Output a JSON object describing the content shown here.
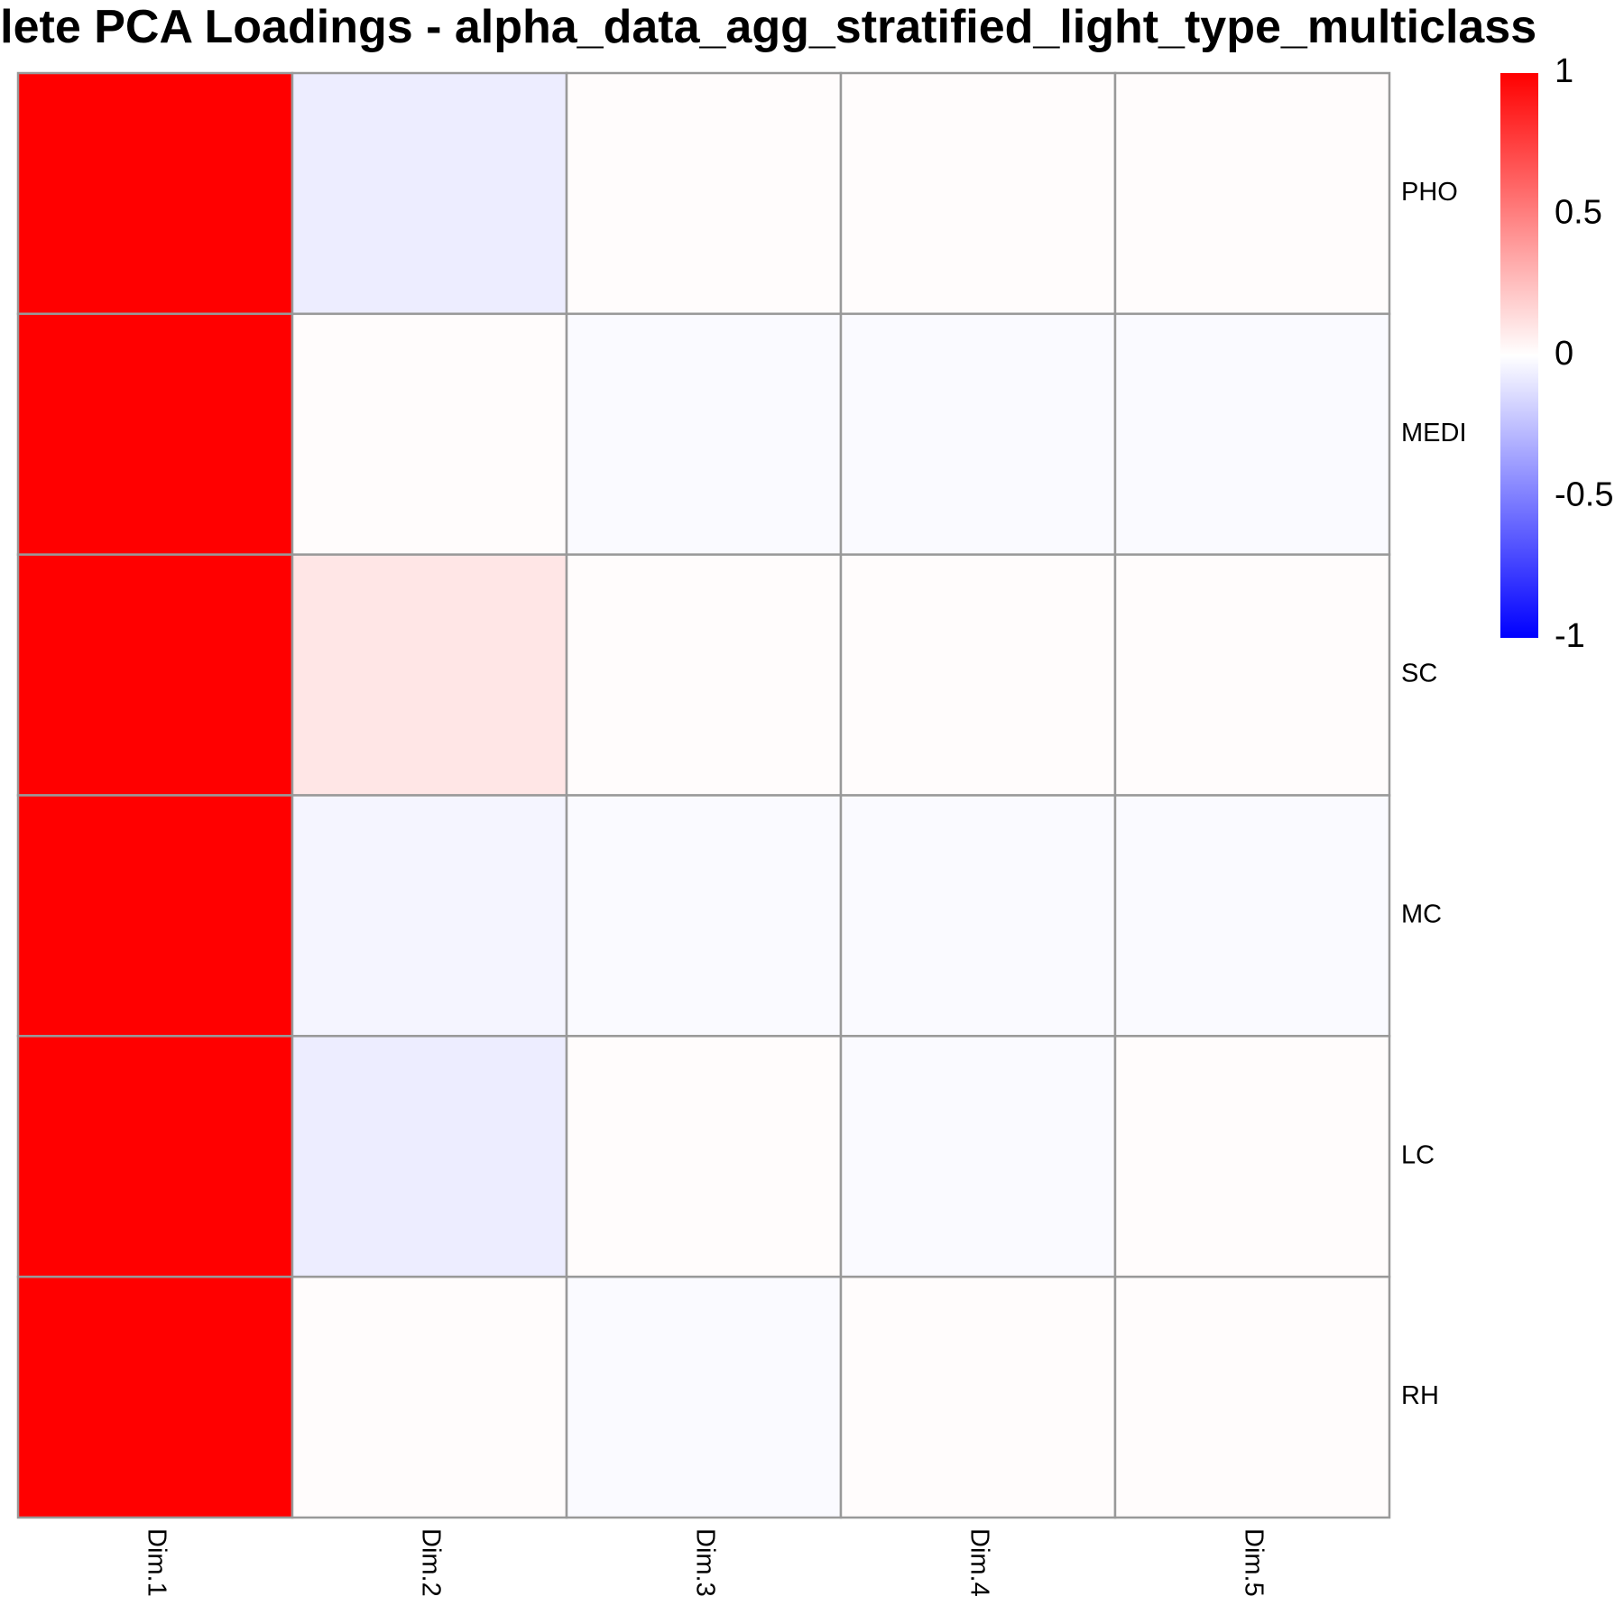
{
  "chart_data": {
    "type": "heatmap",
    "title": "Complete PCA Loadings - alpha_data_agg_stratified_light_type_multiclass",
    "rows": [
      "PHO",
      "MEDI",
      "SC",
      "MC",
      "LC",
      "RH"
    ],
    "columns": [
      "Dim.1",
      "Dim.2",
      "Dim.3",
      "Dim.4",
      "Dim.5"
    ],
    "values": [
      [
        1.0,
        -0.07,
        0.01,
        0.01,
        0.01
      ],
      [
        1.0,
        0.01,
        -0.02,
        -0.02,
        -0.02
      ],
      [
        1.0,
        0.1,
        0.01,
        0.01,
        0.01
      ],
      [
        1.0,
        -0.04,
        -0.02,
        -0.02,
        -0.02
      ],
      [
        1.0,
        -0.07,
        0.01,
        -0.02,
        0.01
      ],
      [
        1.0,
        0.01,
        -0.02,
        0.01,
        0.01
      ]
    ],
    "color_scale": {
      "min": -1,
      "max": 1,
      "low_color": "#0000FF",
      "mid_color": "#FFFFFF",
      "high_color": "#FF0000"
    },
    "legend": {
      "ticks": [
        1,
        0.5,
        0,
        -0.5,
        -1
      ],
      "tick_labels": [
        "1",
        "0.5",
        "0",
        "-0.5",
        "-1"
      ],
      "placement": "top-right"
    },
    "grid_color": "#999999",
    "grid": true
  }
}
